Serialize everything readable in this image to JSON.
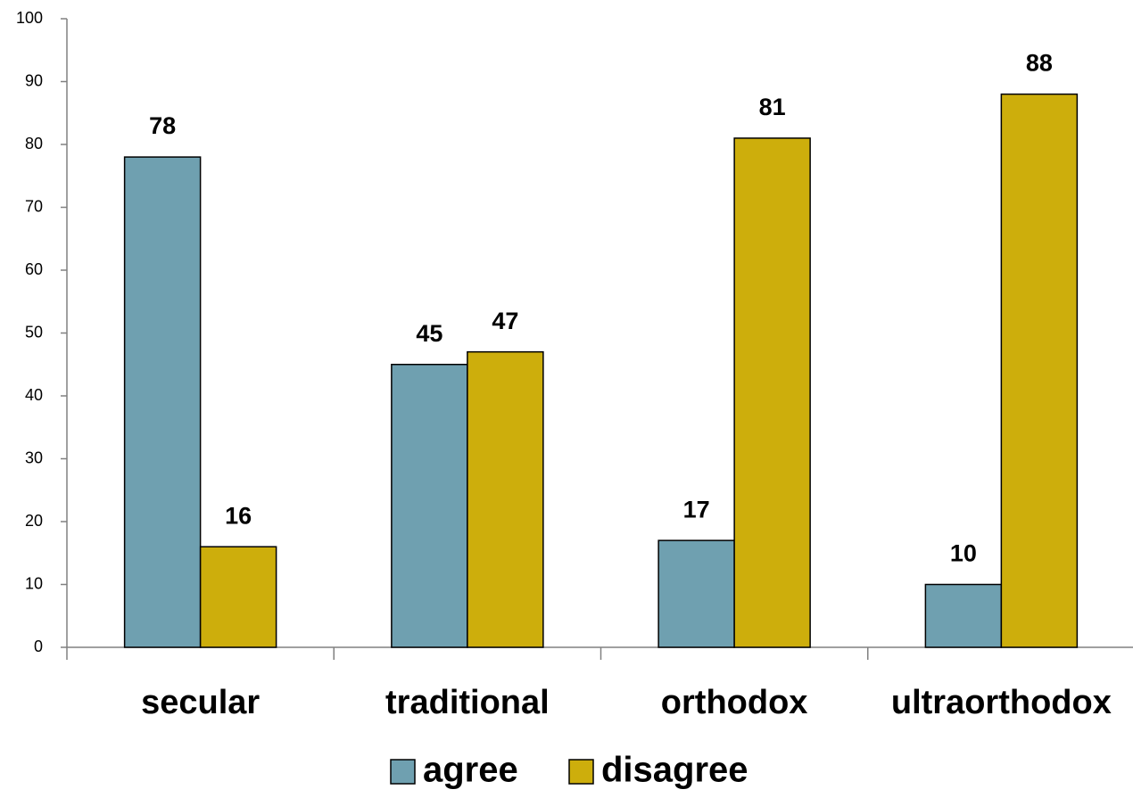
{
  "chart_data": {
    "type": "bar",
    "categories": [
      "secular",
      "traditional",
      "orthodox",
      "ultraorthodox"
    ],
    "series": [
      {
        "name": "agree",
        "color": "#6fa0b0",
        "values": [
          78,
          45,
          17,
          10
        ]
      },
      {
        "name": "disagree",
        "color": "#cdae0c",
        "values": [
          16,
          47,
          81,
          88
        ]
      }
    ],
    "ylim": [
      0,
      100
    ],
    "yticks": [
      0,
      10,
      20,
      30,
      40,
      50,
      60,
      70,
      80,
      90,
      100
    ],
    "grid": false,
    "legend": "bottom"
  }
}
